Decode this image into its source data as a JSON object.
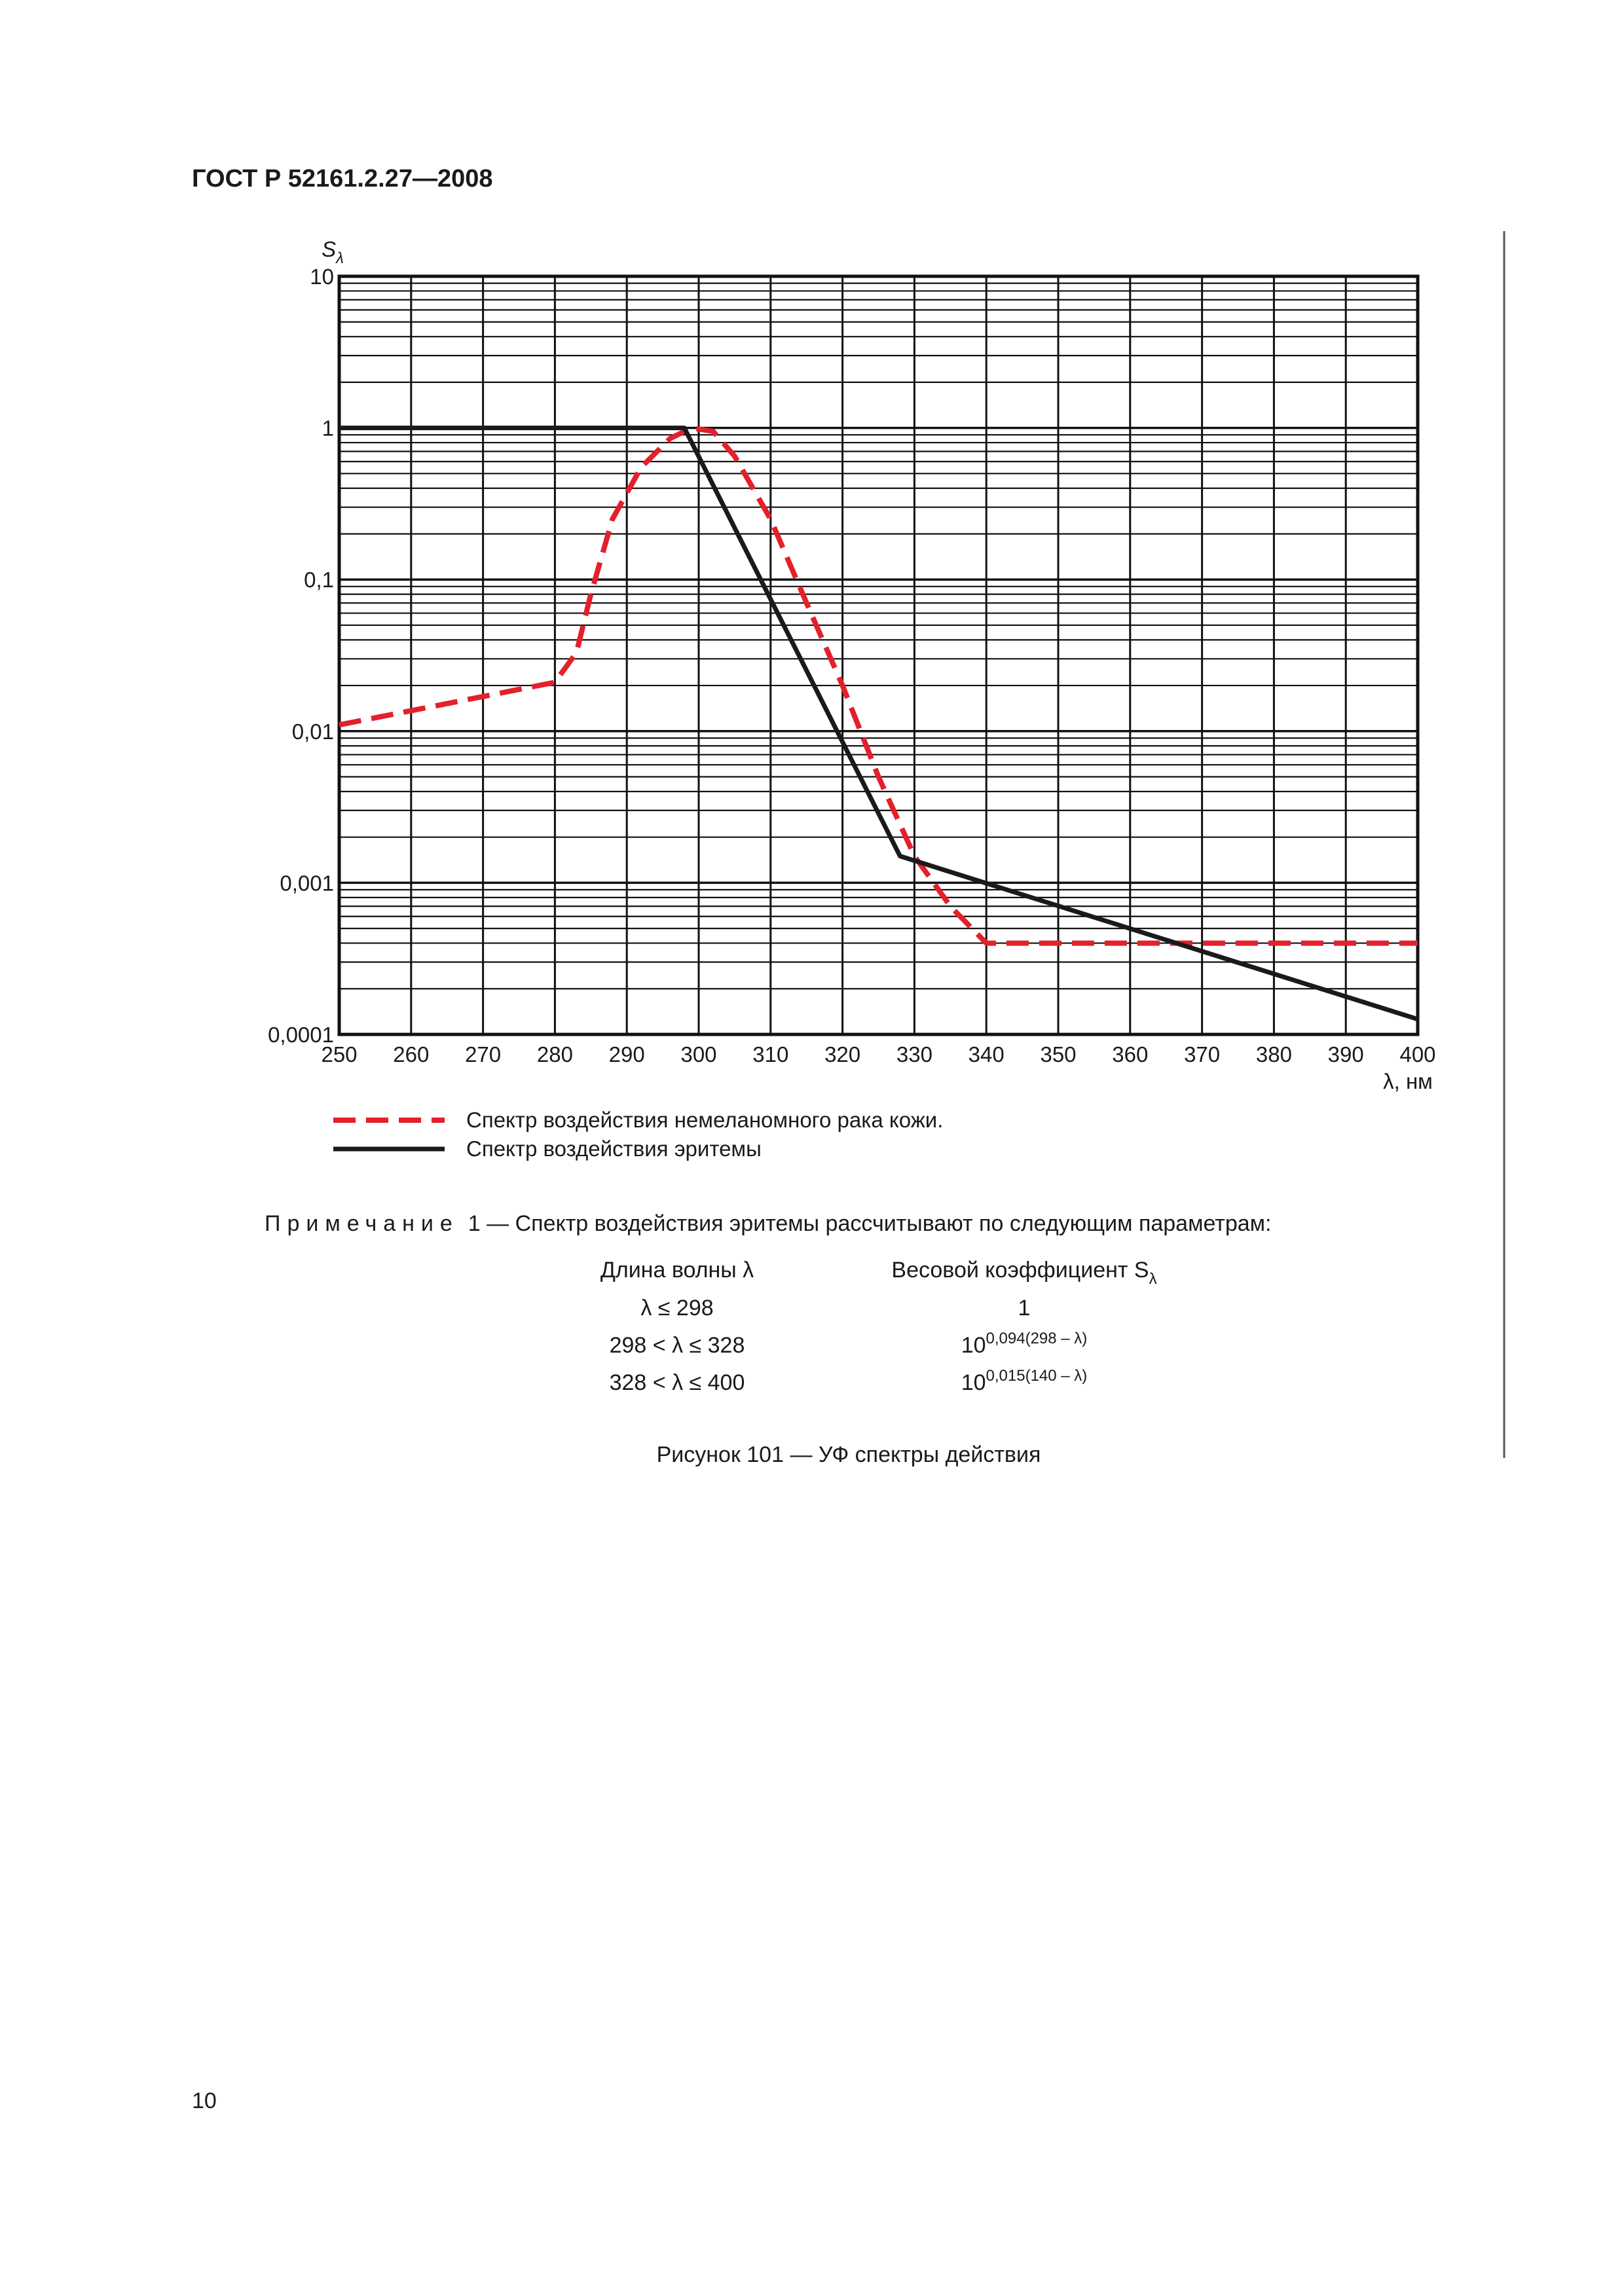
{
  "header": {
    "title": "ГОСТ Р 52161.2.27—2008"
  },
  "chart_data": {
    "type": "line",
    "y_log": true,
    "grid": true,
    "minor_grid": true,
    "legend": "below",
    "ylabel": {
      "text": "S",
      "sub": "λ"
    },
    "xlabel": "λ, нм",
    "xlim": [
      250,
      400
    ],
    "ylim": [
      0.0001,
      10
    ],
    "xticks": [
      250,
      260,
      270,
      280,
      290,
      300,
      310,
      320,
      330,
      340,
      350,
      360,
      370,
      380,
      390,
      400
    ],
    "yticks": [
      {
        "value": 0.0001,
        "label": "0,0001"
      },
      {
        "value": 0.001,
        "label": "0,001"
      },
      {
        "value": 0.01,
        "label": "0,01"
      },
      {
        "value": 0.1,
        "label": "0,1"
      },
      1,
      10
    ],
    "series": [
      {
        "name": "Спектр воздействия немеланомного рака кожи.",
        "color": "#e3202b",
        "dash": true,
        "x": [
          250,
          280,
          283,
          285,
          288,
          292,
          296,
          299,
          302,
          305,
          310,
          315,
          320,
          325,
          330,
          335,
          340,
          400
        ],
        "values": [
          0.011,
          0.021,
          0.033,
          0.08,
          0.25,
          0.55,
          0.85,
          1.0,
          0.95,
          0.65,
          0.25,
          0.07,
          0.02,
          0.005,
          0.0015,
          0.0007,
          0.0004,
          0.0004
        ]
      },
      {
        "name": "Спектр воздействия эритемы",
        "color": "#1a1a1a",
        "dash": false,
        "x": [
          250,
          298,
          328,
          400
        ],
        "values": [
          1,
          1,
          0.0015,
          0.000126
        ]
      }
    ]
  },
  "note": {
    "label": "Примечание",
    "text": "1 — Спектр воздействия эритемы рассчитывают по следующим параметрам:"
  },
  "table": {
    "header": [
      "Длина волны λ",
      {
        "text": "Весовой коэффициент S",
        "sub": "λ"
      }
    ],
    "rows": [
      [
        "λ ≤ 298",
        "1"
      ],
      [
        "298 < λ ≤ 328",
        {
          "base": "10",
          "sup": "0,094(298 – λ)"
        }
      ],
      [
        "328 < λ ≤ 400",
        {
          "base": "10",
          "sup": "0,015(140 – λ)"
        }
      ]
    ]
  },
  "caption": "Рисунок 101 — УФ спектры действия",
  "page_number": "10"
}
